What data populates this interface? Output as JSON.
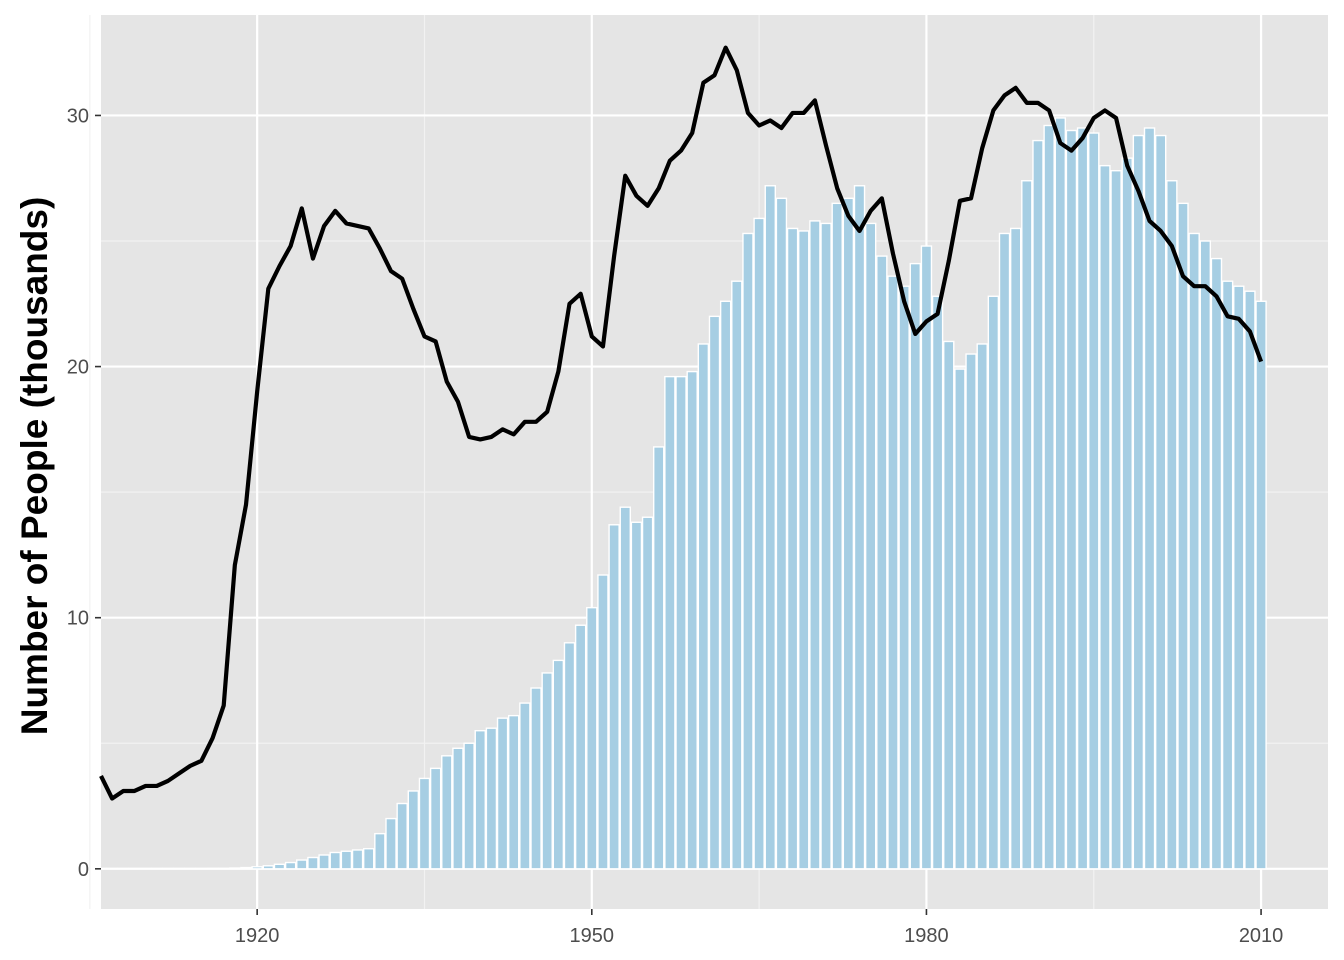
{
  "chart_data": {
    "type": "bar",
    "title": "",
    "xlabel": "",
    "ylabel": "Number of People (thousands)",
    "xlim": [
      1906,
      2016
    ],
    "ylim": [
      -1.6,
      34
    ],
    "x_ticks": [
      1920,
      1950,
      1980,
      2010
    ],
    "y_ticks": [
      0,
      10,
      20,
      30
    ],
    "grid": true,
    "legend": "none",
    "colors": {
      "panel_background": "#e5e5e5",
      "grid_major": "#ffffff",
      "grid_minor": "#f2f2f2",
      "bar_fill": "#a6cee3",
      "bar_outline": "#ffffff",
      "line": "#000000",
      "tick_text": "#4d4d4d",
      "tick_mark": "#333333"
    },
    "bars": {
      "x": [
        1906,
        1907,
        1908,
        1909,
        1910,
        1911,
        1912,
        1913,
        1914,
        1915,
        1916,
        1917,
        1918,
        1919,
        1920,
        1921,
        1922,
        1923,
        1924,
        1925,
        1926,
        1927,
        1928,
        1929,
        1930,
        1931,
        1932,
        1933,
        1934,
        1935,
        1936,
        1937,
        1938,
        1939,
        1940,
        1941,
        1942,
        1943,
        1944,
        1945,
        1946,
        1947,
        1948,
        1949,
        1950,
        1951,
        1952,
        1953,
        1954,
        1955,
        1956,
        1957,
        1958,
        1959,
        1960,
        1961,
        1962,
        1963,
        1964,
        1965,
        1966,
        1967,
        1968,
        1969,
        1970,
        1971,
        1972,
        1973,
        1974,
        1975,
        1976,
        1977,
        1978,
        1979,
        1980,
        1981,
        1982,
        1983,
        1984,
        1985,
        1986,
        1987,
        1988,
        1989,
        1990,
        1991,
        1992,
        1993,
        1994,
        1995,
        1996,
        1997,
        1998,
        1999,
        2000,
        2001,
        2002,
        2003,
        2004,
        2005,
        2006,
        2007,
        2008,
        2009,
        2010
      ],
      "values": [
        0,
        0,
        0,
        0,
        0,
        0,
        0,
        0,
        0,
        0,
        0.02,
        0.02,
        0.03,
        0.05,
        0.08,
        0.12,
        0.18,
        0.25,
        0.35,
        0.45,
        0.55,
        0.65,
        0.7,
        0.75,
        0.8,
        1.4,
        2.0,
        2.6,
        3.1,
        3.6,
        4.0,
        4.5,
        4.8,
        5.0,
        5.5,
        5.6,
        6.0,
        6.1,
        6.6,
        7.2,
        7.8,
        8.3,
        9.0,
        9.7,
        10.4,
        11.7,
        13.7,
        14.4,
        13.8,
        14.0,
        16.8,
        19.6,
        19.6,
        19.8,
        20.9,
        22.0,
        22.6,
        23.4,
        25.3,
        25.9,
        27.2,
        26.7,
        25.5,
        25.4,
        25.8,
        25.7,
        26.5,
        26.7,
        27.2,
        25.7,
        24.4,
        23.6,
        23.2,
        24.1,
        24.8,
        22.8,
        21.0,
        19.9,
        20.5,
        20.9,
        22.8,
        25.3,
        25.5,
        27.4,
        29.0,
        29.6,
        29.9,
        29.4,
        29.5,
        29.3,
        28.0,
        27.8,
        28.3,
        29.2,
        29.5,
        29.2,
        27.4,
        26.5,
        25.3,
        25.0,
        24.3,
        23.4,
        23.2,
        23.0,
        22.6
      ]
    },
    "line": {
      "x": [
        1906,
        1907,
        1908,
        1909,
        1910,
        1911,
        1912,
        1913,
        1914,
        1915,
        1916,
        1917,
        1918,
        1919,
        1920,
        1921,
        1922,
        1923,
        1924,
        1925,
        1926,
        1927,
        1928,
        1929,
        1930,
        1931,
        1932,
        1933,
        1934,
        1935,
        1936,
        1937,
        1938,
        1939,
        1940,
        1941,
        1942,
        1943,
        1944,
        1945,
        1946,
        1947,
        1948,
        1949,
        1950,
        1951,
        1952,
        1953,
        1954,
        1955,
        1956,
        1957,
        1958,
        1959,
        1960,
        1961,
        1962,
        1963,
        1964,
        1965,
        1966,
        1967,
        1968,
        1969,
        1970,
        1971,
        1972,
        1973,
        1974,
        1975,
        1976,
        1977,
        1978,
        1979,
        1980,
        1981,
        1982,
        1983,
        1984,
        1985,
        1986,
        1987,
        1988,
        1989,
        1990,
        1991,
        1992,
        1993,
        1994,
        1995,
        1996,
        1997,
        1998,
        1999,
        2000,
        2001,
        2002,
        2003,
        2004,
        2005,
        2006,
        2007,
        2008,
        2009,
        2010
      ],
      "values": [
        3.7,
        2.8,
        3.1,
        3.1,
        3.3,
        3.3,
        3.5,
        3.8,
        4.1,
        4.3,
        5.2,
        6.5,
        12.1,
        14.5,
        19.0,
        23.1,
        24.0,
        24.8,
        26.3,
        24.3,
        25.6,
        26.2,
        25.7,
        25.6,
        25.5,
        24.7,
        23.8,
        23.5,
        22.3,
        21.2,
        21.0,
        19.4,
        18.6,
        17.2,
        17.1,
        17.2,
        17.5,
        17.3,
        17.8,
        17.8,
        18.2,
        19.8,
        22.5,
        22.9,
        21.2,
        20.8,
        24.4,
        27.6,
        26.8,
        26.4,
        27.1,
        28.2,
        28.6,
        29.3,
        31.3,
        31.6,
        32.7,
        31.8,
        30.1,
        29.6,
        29.8,
        29.5,
        30.1,
        30.1,
        30.6,
        28.8,
        27.1,
        26.0,
        25.4,
        26.2,
        26.7,
        24.5,
        22.6,
        21.3,
        21.8,
        22.1,
        24.2,
        26.6,
        26.7,
        28.7,
        30.2,
        30.8,
        31.1,
        30.5,
        30.5,
        30.2,
        28.9,
        28.6,
        29.1,
        29.9,
        30.2,
        29.9,
        28.0,
        27.0,
        25.8,
        25.4,
        24.8,
        23.6,
        23.2,
        23.2,
        22.8,
        22.0,
        21.9,
        21.4,
        20.2
      ]
    }
  }
}
